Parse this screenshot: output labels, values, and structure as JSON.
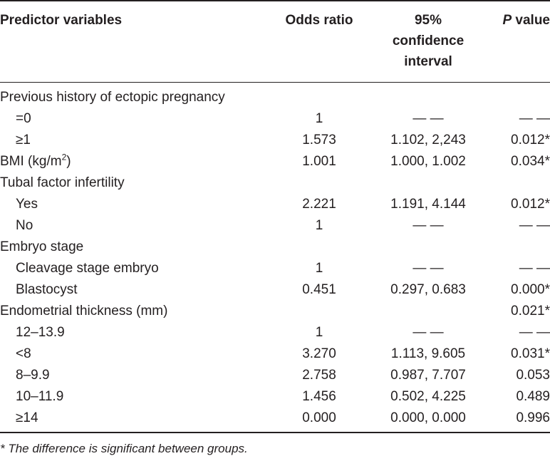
{
  "headers": {
    "c1": "Predictor variables",
    "c2": "Odds ratio",
    "c3_line1": "95%",
    "c3_line2": "confidence",
    "c3_line3": "interval",
    "c4_italic": "P",
    "c4_rest": " value"
  },
  "rows": [
    {
      "label": "Previous history of ectopic pregnancy",
      "indent": false,
      "or": "",
      "ci": "",
      "p": ""
    },
    {
      "label": "=0",
      "indent": true,
      "or": "1",
      "ci": "— —",
      "p": "— —"
    },
    {
      "label": "≥1",
      "indent": true,
      "or": "1.573",
      "ci": "1.102, 2,243",
      "p": "0.012*"
    },
    {
      "label": "BMI (kg/m",
      "label_sup": "2",
      "label_tail": ")",
      "indent": false,
      "or": "1.001",
      "ci": "1.000, 1.002",
      "p": "0.034*"
    },
    {
      "label": "Tubal factor infertility",
      "indent": false,
      "or": "",
      "ci": "",
      "p": ""
    },
    {
      "label": "Yes",
      "indent": true,
      "or": "2.221",
      "ci": "1.191, 4.144",
      "p": "0.012*"
    },
    {
      "label": "No",
      "indent": true,
      "or": "1",
      "ci": "— —",
      "p": "— —"
    },
    {
      "label": "Embryo stage",
      "indent": false,
      "or": "",
      "ci": "",
      "p": ""
    },
    {
      "label": "Cleavage stage embryo",
      "indent": true,
      "or": "1",
      "ci": "— —",
      "p": "— —"
    },
    {
      "label": "Blastocyst",
      "indent": true,
      "or": "0.451",
      "ci": "0.297, 0.683",
      "p": "0.000*"
    },
    {
      "label": "Endometrial thickness (mm)",
      "indent": false,
      "or": "",
      "ci": "",
      "p": "0.021*"
    },
    {
      "label": "12–13.9",
      "indent": true,
      "or": "1",
      "ci": "— —",
      "p": "— —"
    },
    {
      "label": "<8",
      "indent": true,
      "or": "3.270",
      "ci": "1.113, 9.605",
      "p": "0.031*"
    },
    {
      "label": "8–9.9",
      "indent": true,
      "or": "2.758",
      "ci": "0.987, 7.707",
      "p": "0.053"
    },
    {
      "label": "10–11.9",
      "indent": true,
      "or": "1.456",
      "ci": "0.502, 4.225",
      "p": "0.489"
    },
    {
      "label": "≥14",
      "indent": true,
      "or": "0.000",
      "ci": "0.000, 0.000",
      "p": "0.996"
    }
  ],
  "footnote": "* The difference is significant between groups."
}
